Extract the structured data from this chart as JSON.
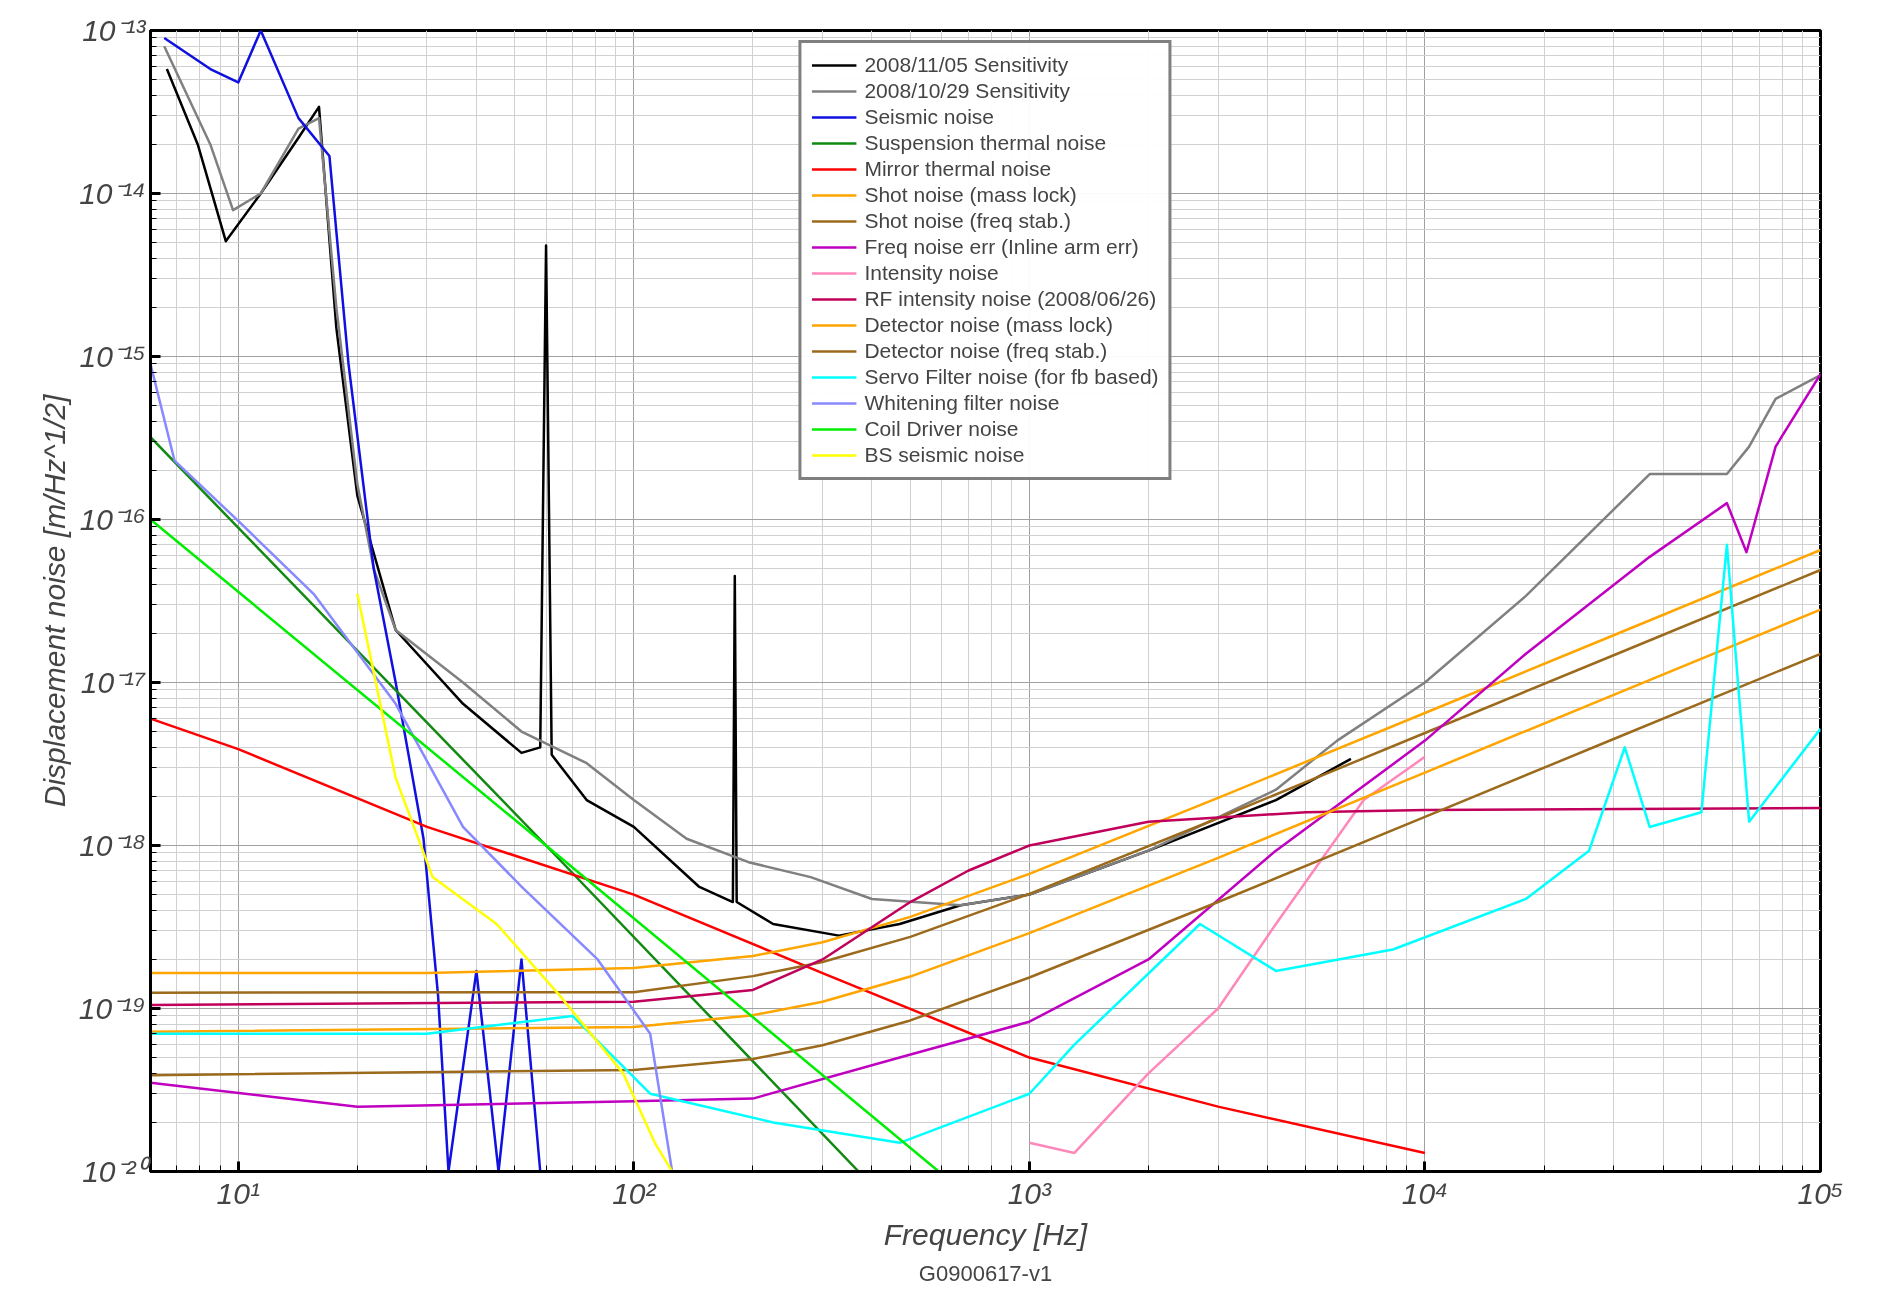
{
  "chart_data": {
    "type": "line",
    "xlabel": "Frequency [Hz]",
    "ylabel": "Displacement noise [m/Hz^1/2]",
    "annotations": [
      "G0900617-v1"
    ],
    "log": "xy",
    "grid": true,
    "legend": "top",
    "xlim": [
      6,
      100000
    ],
    "xticks": [
      {
        "value": 10,
        "label": "10¹"
      },
      {
        "value": 100,
        "label": "10²"
      },
      {
        "value": 1000,
        "label": "10³"
      },
      {
        "value": 10000,
        "label": "10⁴"
      },
      {
        "value": 100000,
        "label": "10⁵"
      }
    ],
    "ylim": [
      1e-20,
      1e-13
    ],
    "yticks": [
      {
        "value": 1e-20,
        "label": "10⁻²⁰"
      },
      {
        "value": 1e-19,
        "label": "10⁻¹⁹"
      },
      {
        "value": 1e-18,
        "label": "10⁻¹⁸"
      },
      {
        "value": 1e-17,
        "label": "10⁻¹⁷"
      },
      {
        "value": 1e-16,
        "label": "10⁻¹⁶"
      },
      {
        "value": 1e-15,
        "label": "10⁻¹⁵"
      },
      {
        "value": 1e-14,
        "label": "10⁻¹⁴"
      },
      {
        "value": 1e-13,
        "label": "10⁻¹³"
      }
    ],
    "series": [
      {
        "name": "2008/11/05 Sensitivity",
        "color": "#000000",
        "x": [
          6.6,
          7.9,
          9.3,
          11.4,
          14.2,
          16,
          17.7,
          20,
          25,
          37,
          52,
          58,
          60,
          62,
          76,
          100,
          146,
          178,
          180,
          182,
          225,
          330,
          470,
          670,
          1000,
          2000,
          4200,
          6500
        ],
        "values": [
          5.8e-14,
          2e-14,
          5.1e-15,
          1e-14,
          2.2e-14,
          3.4e-14,
          1.5e-15,
          1.4e-16,
          2.1e-17,
          7.4e-18,
          3.7e-18,
          4e-18,
          4.8e-15,
          3.6e-18,
          1.9e-18,
          1.3e-18,
          5.6e-19,
          4.5e-19,
          4.5e-17,
          4.5e-19,
          3.3e-19,
          2.8e-19,
          3.3e-19,
          4.3e-19,
          5e-19,
          9.3e-19,
          1.9e-18,
          3.4e-18
        ]
      },
      {
        "name": "2008/10/29 Sensitivity",
        "color": "#808080",
        "x": [
          6.5,
          8.5,
          9.7,
          11.4,
          14.2,
          16,
          17.7,
          20,
          22,
          25,
          37,
          52,
          76,
          100,
          136,
          195,
          280,
          400,
          670,
          1000,
          2000,
          4200,
          6000,
          10000,
          18000,
          37000,
          58000,
          66000,
          77000,
          100000
        ],
        "values": [
          8e-14,
          2e-14,
          7.9e-15,
          1e-14,
          2.5e-14,
          2.9e-14,
          2e-15,
          1.65e-16,
          5e-17,
          2.1e-17,
          1e-17,
          5e-18,
          3.2e-18,
          1.9e-18,
          1.1e-18,
          7.9e-19,
          6.4e-19,
          4.7e-19,
          4.3e-19,
          5e-19,
          9.3e-19,
          2.2e-18,
          4.4e-18,
          1e-17,
          3.4e-17,
          1.9e-16,
          1.9e-16,
          2.8e-16,
          5.5e-16,
          7.7e-16
        ]
      },
      {
        "name": "Seismic noise",
        "color": "#1010e0",
        "x": [
          6.5,
          8.5,
          10,
          11.4,
          14.2,
          17,
          19,
          22,
          25,
          29.4,
          32,
          34,
          40,
          45.5,
          52,
          58
        ],
        "values": [
          9e-14,
          5.8e-14,
          4.8e-14,
          1e-13,
          2.9e-14,
          1.7e-14,
          9e-16,
          5e-17,
          1e-17,
          1.1e-18,
          1.2e-19,
          1e-20,
          1.7e-19,
          1e-20,
          2e-19,
          1e-20
        ]
      },
      {
        "name": "Suspension thermal noise",
        "color": "#108a10",
        "x": [
          6,
          60,
          370
        ],
        "values": [
          3.2e-16,
          1e-18,
          1e-20
        ]
      },
      {
        "name": "Mirror thermal noise",
        "color": "#ff0000",
        "x": [
          6,
          10,
          30,
          100,
          300,
          1000,
          3000,
          10000
        ],
        "values": [
          6e-18,
          3.9e-18,
          1.3e-18,
          5e-19,
          1.65e-19,
          5e-20,
          2.5e-20,
          1.3e-20
        ]
      },
      {
        "name": "Shot noise (mass lock)",
        "color": "#ffa500",
        "x": [
          6,
          30,
          100,
          200,
          300,
          500,
          1000,
          3000,
          10000,
          30000,
          100000
        ],
        "values": [
          1.65e-19,
          1.65e-19,
          1.77e-19,
          2.1e-19,
          2.55e-19,
          3.65e-19,
          6.7e-19,
          1.96e-18,
          6.5e-18,
          1.95e-17,
          6.5e-17
        ]
      },
      {
        "name": "Shot noise (freq stab.)",
        "color": "#9c6a1c",
        "x": [
          6,
          100,
          200,
          300,
          500,
          1000,
          3000,
          10000,
          30000,
          100000
        ],
        "values": [
          1.25e-19,
          1.26e-19,
          1.58e-19,
          1.93e-19,
          2.75e-19,
          5.05e-19,
          1.47e-18,
          4.9e-18,
          1.47e-17,
          4.9e-17
        ]
      },
      {
        "name": "Freq noise err (Inline arm err)",
        "color": "#c000c0",
        "x": [
          6,
          20,
          100,
          200,
          470,
          1000,
          2000,
          4200,
          10000,
          18000,
          37000,
          58000,
          65000,
          77000,
          100000
        ],
        "values": [
          3.5e-20,
          2.5e-20,
          2.7e-20,
          2.8e-20,
          5e-20,
          8.3e-20,
          2e-19,
          9.3e-19,
          4.4e-18,
          1.5e-17,
          5.9e-17,
          1.26e-16,
          6.3e-17,
          2.8e-16,
          7.8e-16
        ]
      },
      {
        "name": "Intensity noise",
        "color": "#ff88bb",
        "x": [
          1000,
          1300,
          2000,
          3000,
          4200,
          7000,
          10000
        ],
        "values": [
          1.5e-20,
          1.3e-20,
          4e-20,
          1e-19,
          3.3e-19,
          1.9e-18,
          3.5e-18
        ]
      },
      {
        "name": "RF intensity noise (2008/06/26)",
        "color": "#c0005a",
        "x": [
          6,
          100,
          200,
          300,
          500,
          700,
          1000,
          2000,
          5000,
          10000,
          100000
        ],
        "values": [
          1.05e-19,
          1.1e-19,
          1.3e-19,
          2e-19,
          4.5e-19,
          7e-19,
          1e-18,
          1.4e-18,
          1.6e-18,
          1.65e-18,
          1.7e-18
        ]
      },
      {
        "name": "Detector noise (mass lock)",
        "color": "#ffa500",
        "x": [
          6,
          100,
          200,
          300,
          500,
          1000,
          3000,
          10000,
          30000,
          100000
        ],
        "values": [
          7.2e-20,
          7.7e-20,
          9.1e-20,
          1.1e-19,
          1.57e-19,
          2.9e-19,
          8.4e-19,
          2.8e-18,
          8.4e-18,
          2.8e-17
        ]
      },
      {
        "name": "Detector noise (freq stab.)",
        "color": "#9c6a1c",
        "x": [
          6,
          100,
          200,
          300,
          500,
          1000,
          3000,
          10000,
          30000,
          100000
        ],
        "values": [
          3.9e-20,
          4.2e-20,
          4.9e-20,
          5.95e-20,
          8.45e-20,
          1.55e-19,
          4.5e-19,
          1.5e-18,
          4.5e-18,
          1.5e-17
        ]
      },
      {
        "name": "Servo Filter noise (for fb based)",
        "color": "#00ffff",
        "x": [
          6,
          30,
          70,
          110,
          225,
          470,
          1000,
          1300,
          2700,
          4200,
          8300,
          18000,
          26000,
          32000,
          37000,
          50000,
          58000,
          66000,
          100000
        ],
        "values": [
          7e-20,
          7e-20,
          9e-20,
          3e-20,
          2e-20,
          1.5e-20,
          3e-20,
          6e-20,
          3.3e-19,
          1.7e-19,
          2.3e-19,
          4.7e-19,
          9.3e-19,
          4e-18,
          1.3e-18,
          1.6e-18,
          7e-17,
          1.4e-18,
          5.2e-18
        ]
      },
      {
        "name": "Whitening filter noise",
        "color": "#8888ff",
        "x": [
          6,
          6.9,
          10,
          15.5,
          25,
          37,
          52,
          81,
          110,
          125
        ],
        "values": [
          9e-16,
          2.3e-16,
          9.8e-17,
          3.5e-17,
          7.4e-18,
          1.3e-18,
          5.6e-19,
          2e-19,
          7e-20,
          1e-20
        ]
      },
      {
        "name": "Coil Driver noise",
        "color": "#00ee00",
        "x": [
          6,
          60,
          590
        ],
        "values": [
          1e-16,
          1e-18,
          1e-20
        ]
      },
      {
        "name": "BS seismic noise",
        "color": "#ffff00",
        "x": [
          20,
          25,
          31,
          45,
          65,
          94,
          113,
          125
        ],
        "values": [
          3.5e-17,
          2.6e-18,
          6.4e-19,
          3.3e-19,
          1.2e-19,
          4e-20,
          1.5e-20,
          1e-20
        ]
      }
    ]
  }
}
